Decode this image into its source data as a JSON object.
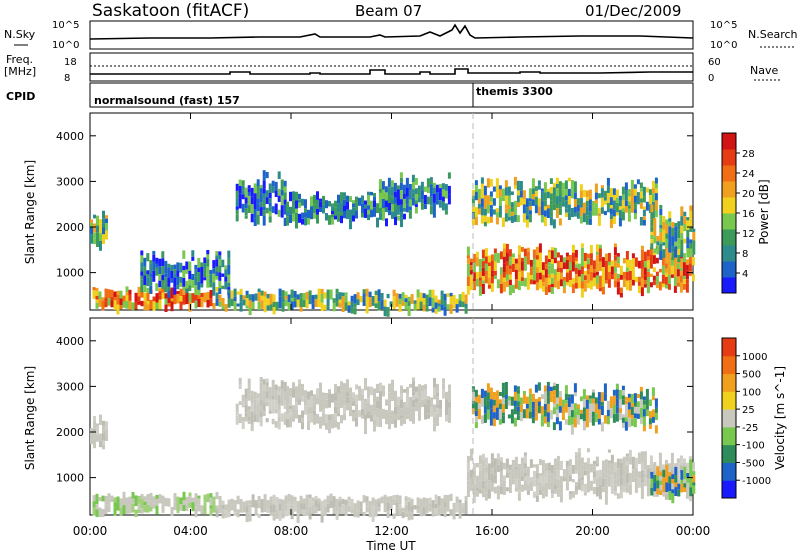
{
  "header": {
    "station": "Saskatoon (fitACF)",
    "beam": "Beam 07",
    "date": "01/Dec/2009"
  },
  "top_panel": {
    "left_label": "N.Sky",
    "left_ticks": [
      "10^5",
      "10^0"
    ],
    "right_label": "N.Search",
    "right_ticks": [
      "10^5",
      "10^0"
    ]
  },
  "freq_panel": {
    "left_label_1": "Freq.",
    "left_label_2": "[MHz]",
    "left_ticks": [
      "18",
      "8"
    ],
    "right_label": "Nave",
    "right_ticks": [
      "60",
      "0"
    ],
    "cpid_label": "CPID",
    "cpid_segments": [
      "normalsound (fast) 157",
      "themis 3300"
    ]
  },
  "chart_data": [
    {
      "type": "heatmap",
      "title": "",
      "xlabel": "",
      "ylabel": "Slant Range [km]",
      "xlim": [
        "00:00",
        "24:00"
      ],
      "ylim": [
        180,
        4500
      ],
      "y_ticks": [
        1000,
        2000,
        3000,
        4000
      ],
      "colorbar_label": "Power [dB]",
      "colorbar_ticks": [
        4,
        8,
        12,
        16,
        20,
        24,
        28
      ],
      "colorbar_colors": [
        "#1a1aff",
        "#1e64c8",
        "#2e8b8b",
        "#3c9a5a",
        "#78c850",
        "#f0d21e",
        "#f0a01e",
        "#f06e14",
        "#e63c14",
        "#d21414"
      ],
      "regions": [
        {
          "t0": 0.0,
          "t1": 0.6,
          "r0": 1650,
          "r1": 2400,
          "level": "mid"
        },
        {
          "t0": 0.1,
          "t1": 5.0,
          "r0": 250,
          "r1": 700,
          "level": "high"
        },
        {
          "t0": 2.0,
          "t1": 5.5,
          "r0": 550,
          "r1": 1500,
          "level": "low"
        },
        {
          "t0": 5.8,
          "t1": 7.8,
          "r0": 2100,
          "r1": 3250,
          "level": "low"
        },
        {
          "t0": 7.8,
          "t1": 12.5,
          "r0": 2100,
          "r1": 2800,
          "level": "low"
        },
        {
          "t0": 11.5,
          "t1": 14.3,
          "r0": 2300,
          "r1": 3200,
          "level": "low"
        },
        {
          "t0": 5.0,
          "t1": 15.0,
          "r0": 180,
          "r1": 650,
          "level": "mid"
        },
        {
          "t0": 15.0,
          "t1": 24.0,
          "r0": 550,
          "r1": 1650,
          "level": "high"
        },
        {
          "t0": 15.2,
          "t1": 22.5,
          "r0": 2100,
          "r1": 3100,
          "level": "mid"
        },
        {
          "t0": 22.3,
          "t1": 24.0,
          "r0": 1300,
          "r1": 2500,
          "level": "mid"
        }
      ]
    },
    {
      "type": "heatmap",
      "title": "",
      "xlabel": "Time UT",
      "ylabel": "Slant Range [km]",
      "xlim": [
        "00:00",
        "24:00"
      ],
      "ylim": [
        180,
        4500
      ],
      "x_ticks": [
        "00:00",
        "04:00",
        "08:00",
        "12:00",
        "16:00",
        "20:00",
        "00:00"
      ],
      "y_ticks": [
        1000,
        2000,
        3000,
        4000
      ],
      "colorbar_label": "Velocity [m s^-1]",
      "colorbar_ticks": [
        1000,
        500,
        100,
        25,
        -25,
        -100,
        -500,
        -1000
      ],
      "colorbar_colors": [
        "#1a1aff",
        "#1e64c8",
        "#2e8b5a",
        "#78c850",
        "#c8c8be",
        "#f0d21e",
        "#f0a01e",
        "#f06e14",
        "#e63c14"
      ],
      "regions": [
        {
          "t0": 0.0,
          "t1": 0.6,
          "r0": 1650,
          "r1": 2400,
          "level": "grey"
        },
        {
          "t0": 0.1,
          "t1": 5.0,
          "r0": 250,
          "r1": 700,
          "level": "greenish"
        },
        {
          "t0": 5.8,
          "t1": 7.8,
          "r0": 2100,
          "r1": 3250,
          "level": "grey"
        },
        {
          "t0": 7.8,
          "t1": 14.3,
          "r0": 2100,
          "r1": 3200,
          "level": "grey"
        },
        {
          "t0": 5.0,
          "t1": 15.0,
          "r0": 180,
          "r1": 650,
          "level": "grey"
        },
        {
          "t0": 15.0,
          "t1": 24.0,
          "r0": 550,
          "r1": 1650,
          "level": "grey"
        },
        {
          "t0": 15.2,
          "t1": 22.5,
          "r0": 2100,
          "r1": 3100,
          "level": "green"
        },
        {
          "t0": 22.3,
          "t1": 24.0,
          "r0": 600,
          "r1": 1400,
          "level": "green"
        }
      ]
    }
  ]
}
